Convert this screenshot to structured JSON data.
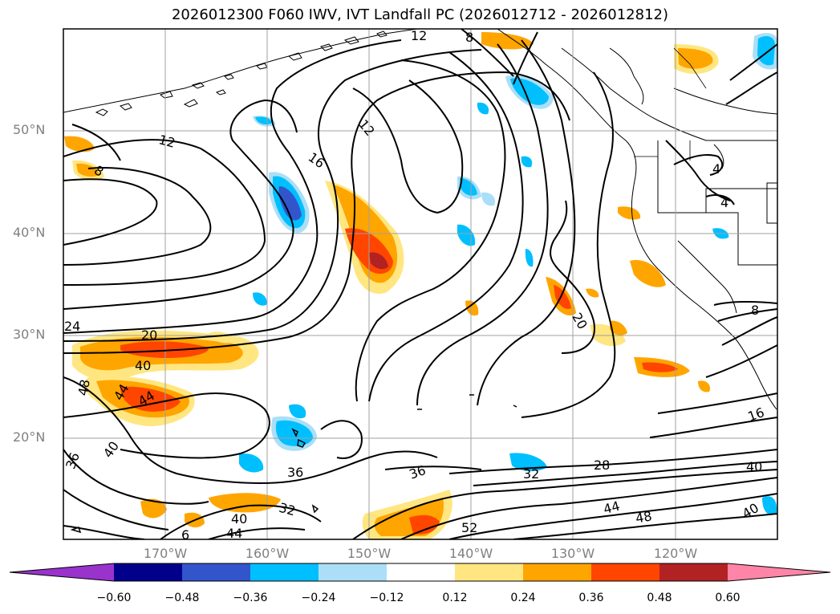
{
  "title": "2026012300 F060 IWV, IVT Landfall PC (2026012712 - 2026012812)",
  "y_ticks": [
    "50°N",
    "40°N",
    "30°N",
    "20°N"
  ],
  "x_ticks": [
    "170°W",
    "160°W",
    "150°W",
    "140°W",
    "130°W",
    "120°W"
  ],
  "colorbar": {
    "colors": [
      "#9933cc",
      "#00008b",
      "#3355cc",
      "#00bfff",
      "#aadff7",
      "#ffffff",
      "#ffe680",
      "#ffa500",
      "#ff4500",
      "#b22222",
      "#ff85a8"
    ],
    "ticks": [
      "−0.60",
      "−0.48",
      "−0.36",
      "−0.24",
      "−0.12",
      "0.12",
      "0.24",
      "0.36",
      "0.48",
      "0.60"
    ]
  },
  "contour_labels": [
    "12",
    "8",
    "12",
    "12",
    "8",
    "16",
    "24",
    "20",
    "40",
    "44",
    "48",
    "44",
    "40",
    "36",
    "20",
    "16",
    "4",
    "4",
    "8",
    "36",
    "36",
    "32",
    "28",
    "40",
    "40",
    "44",
    "48",
    "32",
    "40",
    "44",
    "52",
    "6"
  ]
}
